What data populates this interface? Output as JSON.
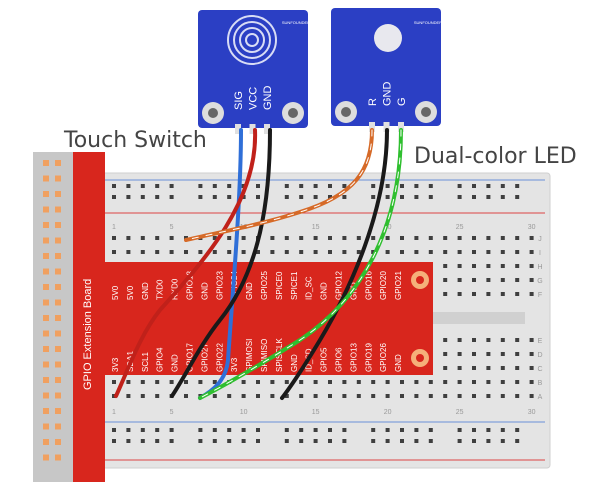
{
  "labels": {
    "touch_switch": "Touch Switch",
    "dual_color_led": "Dual-color LED",
    "extension_board": "GPIO Extension Board"
  },
  "touch_module": {
    "pins": [
      "SIG",
      "VCC",
      "GND"
    ],
    "brand": "SUNFOUNDER"
  },
  "led_module": {
    "pins": [
      "R",
      "GND",
      "G"
    ],
    "brand": "SUNFOUNDER"
  },
  "board_pins_top": [
    "5V0",
    "5V0",
    "GND",
    "TXD0",
    "RXD0",
    "GPIO18",
    "GND",
    "GPIO23",
    "GPIO24",
    "GND",
    "GPIO25",
    "SPICE0",
    "SPICE1",
    "ID_SC",
    "GND",
    "GPIO12",
    "GND",
    "GPIO16",
    "GPIO20",
    "GPIO21"
  ],
  "board_pins_bottom": [
    "3V3",
    "SDA1",
    "SCL1",
    "GPIO4",
    "GND",
    "GPIO17",
    "GPIO27",
    "GPIO22",
    "3V3",
    "SPIMOSI",
    "SPIMISO",
    "SPISCLK",
    "GND",
    "ID_SD",
    "GPIO5",
    "GPIO6",
    "GPIO13",
    "GPIO19",
    "GPIO26",
    "GND"
  ],
  "breadboard": {
    "col_numbers": [
      "1",
      "5",
      "10",
      "15",
      "20",
      "25",
      "30"
    ],
    "row_letters_top": [
      "J",
      "I",
      "H",
      "G",
      "F"
    ],
    "row_letters_bottom": [
      "E",
      "D",
      "C",
      "B",
      "A"
    ]
  },
  "colors": {
    "module_blue": "#2b3fc4",
    "board_red": "#d6261c",
    "breadboard": "#e3e3e3",
    "wire_blue": "#2f6fd8",
    "wire_red": "#c0211a",
    "wire_black": "#1a1a1a",
    "wire_orange": "#d66a28",
    "wire_green": "#2fbf2f",
    "rail_red": "#d33",
    "rail_blue": "#36c"
  }
}
